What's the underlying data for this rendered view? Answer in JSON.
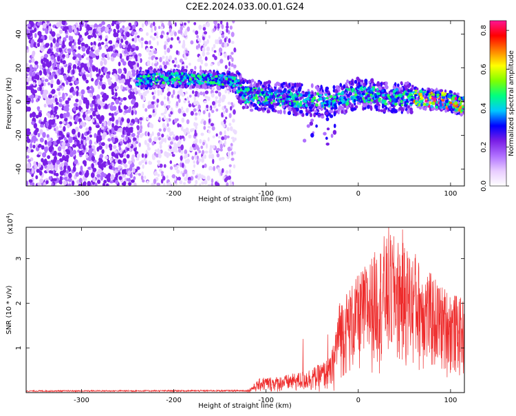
{
  "title": "C2E2.2024.033.00.01.G24",
  "chart_data": [
    {
      "type": "heatmap",
      "xlabel": "Height of straight line (km)",
      "ylabel": "Frequency (Hz)",
      "xlim": [
        -360,
        115
      ],
      "ylim": [
        -50,
        48
      ],
      "xticks": [
        -300,
        -200,
        -100,
        0,
        100
      ],
      "yticks": [
        -40,
        -20,
        0,
        20,
        40
      ],
      "colorbar": {
        "label": "Normalized spectral amplitude",
        "range": [
          0.0,
          0.85
        ],
        "ticks": [
          0.0,
          0.2,
          0.4,
          0.6,
          0.8
        ],
        "colors": [
          "#ffffff",
          "#e8ccff",
          "#b070ff",
          "#7a1fe6",
          "#0000ff",
          "#00c8ff",
          "#00ff80",
          "#80ff00",
          "#ffff00",
          "#ff8000",
          "#ff0000",
          "#ff1493"
        ]
      },
      "ridge": [
        {
          "x": -240,
          "y": 13
        },
        {
          "x": -200,
          "y": 14
        },
        {
          "x": -160,
          "y": 13
        },
        {
          "x": -133,
          "y": 12
        },
        {
          "x": -125,
          "y": 4
        },
        {
          "x": -100,
          "y": 3
        },
        {
          "x": -60,
          "y": 1
        },
        {
          "x": -30,
          "y": 0
        },
        {
          "x": 0,
          "y": 5
        },
        {
          "x": 30,
          "y": 3
        },
        {
          "x": 60,
          "y": 2
        },
        {
          "x": 90,
          "y": 1
        },
        {
          "x": 115,
          "y": -2
        }
      ]
    },
    {
      "type": "line",
      "xlabel": "Height of straight line (km)",
      "ylabel": "SNR (10 * v/v)",
      "ylabel_scale": "(x10",
      "ylabel_exponent": "4",
      "xlim": [
        -360,
        115
      ],
      "ylim": [
        0,
        3.7
      ],
      "xticks": [
        -300,
        -200,
        -100,
        0,
        100
      ],
      "yticks": [
        1,
        2,
        3
      ],
      "series": [
        {
          "color": "#ee2b2b",
          "envelope": [
            {
              "x": -360,
              "y": 0.05
            },
            {
              "x": -120,
              "y": 0.06
            },
            {
              "x": -105,
              "y": 0.35
            },
            {
              "x": -90,
              "y": 0.35
            },
            {
              "x": -65,
              "y": 0.45
            },
            {
              "x": -45,
              "y": 0.6
            },
            {
              "x": -30,
              "y": 0.8
            },
            {
              "x": -20,
              "y": 1.8
            },
            {
              "x": 0,
              "y": 2.3
            },
            {
              "x": 20,
              "y": 2.8
            },
            {
              "x": 35,
              "y": 3.1
            },
            {
              "x": 50,
              "y": 2.9
            },
            {
              "x": 70,
              "y": 2.5
            },
            {
              "x": 90,
              "y": 2.1
            },
            {
              "x": 115,
              "y": 1.8
            }
          ],
          "peaks": [
            {
              "x": -60,
              "y": 1.2
            },
            {
              "x": -33,
              "y": 1.3
            },
            {
              "x": -20,
              "y": 2.0
            },
            {
              "x": 28,
              "y": 3.5
            },
            {
              "x": 33,
              "y": 3.7
            },
            {
              "x": 48,
              "y": 3.65
            },
            {
              "x": 62,
              "y": 3.1
            }
          ]
        }
      ]
    }
  ]
}
